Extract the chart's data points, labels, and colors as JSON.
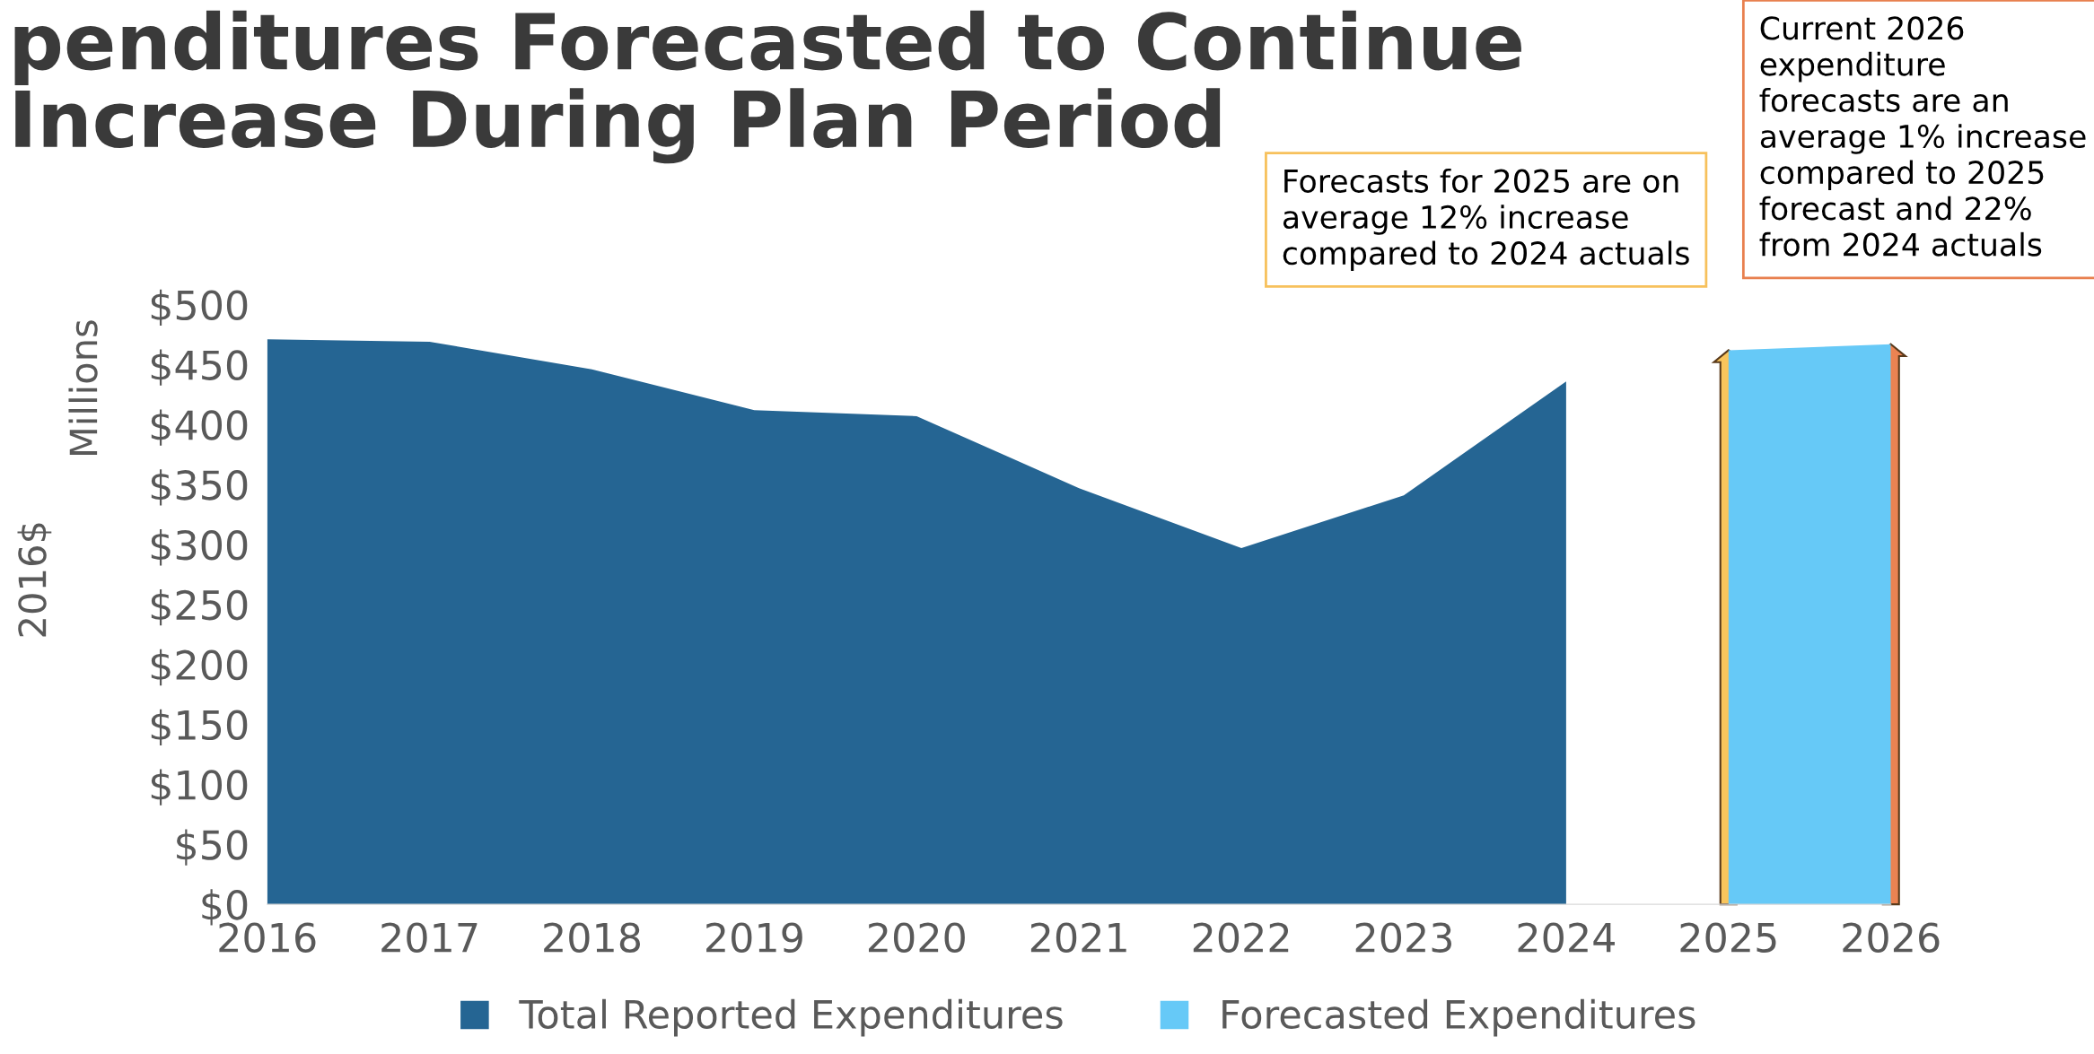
{
  "chart_data": {
    "type": "area",
    "title": "penditures Forecasted to Continue\nIncrease During Plan Period",
    "ylabel": "Millions",
    "categories": [
      "2016",
      "2017",
      "2018",
      "2019",
      "2020",
      "2021",
      "2022",
      "2023",
      "2024",
      "2025",
      "2026"
    ],
    "series": [
      {
        "name": "Total Reported Expenditures",
        "color": "#256593",
        "values": [
          471,
          469,
          446,
          412,
          407,
          347,
          297,
          341,
          436,
          null,
          null
        ]
      },
      {
        "name": "Forecasted Expenditures",
        "color": "#66c9f7",
        "values": [
          null,
          null,
          null,
          null,
          null,
          null,
          null,
          null,
          null,
          462,
          467
        ]
      }
    ],
    "ylim": [
      0,
      500
    ],
    "yticks": [
      {
        "value": 0,
        "label": "$0"
      },
      {
        "value": 50,
        "label": "$50"
      },
      {
        "value": 100,
        "label": "$100"
      },
      {
        "value": 150,
        "label": "$150"
      },
      {
        "value": 200,
        "label": "$200"
      },
      {
        "value": 250,
        "label": "$250"
      },
      {
        "value": 300,
        "label": "$300"
      },
      {
        "value": 350,
        "label": "$350"
      },
      {
        "value": 400,
        "label": "$400"
      },
      {
        "value": 450,
        "label": "$450"
      },
      {
        "value": 500,
        "label": "$500"
      }
    ],
    "grid": false,
    "legend": "bottom",
    "annotations": [
      "2016$",
      {
        "text": "Forecasts for 2025 are on\naverage 12% increase\ncompared to 2024 actuals",
        "x": "2025",
        "y": 462
      },
      {
        "text": "Current 2026\nexpenditure\nforecasts are an\naverage 1% increase\ncompared to 2025\nforecast and 22%\nfrom 2024 actuals",
        "x": "2026",
        "y": 467
      }
    ]
  }
}
